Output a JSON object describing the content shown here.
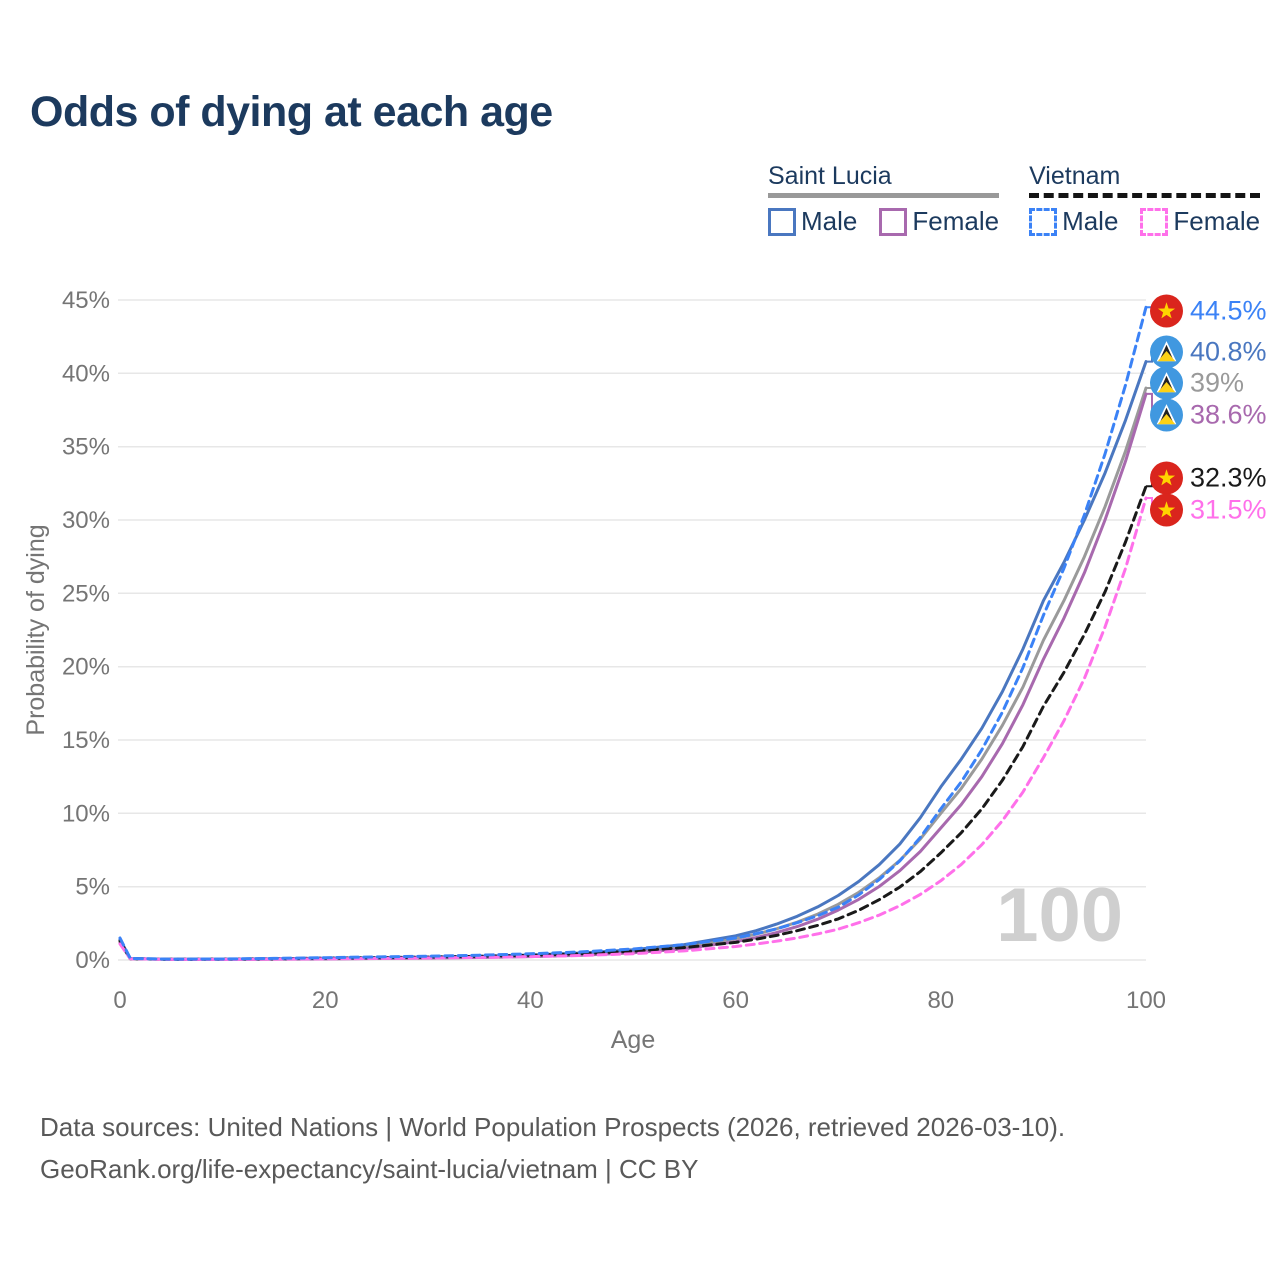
{
  "title": "Odds of dying at each age",
  "legend": {
    "groups": [
      {
        "name": "Saint Lucia",
        "line_style": "solid",
        "underline_color": "#999999",
        "items": [
          {
            "label": "Male",
            "color": "#4a77c0"
          },
          {
            "label": "Female",
            "color": "#a869ae"
          }
        ]
      },
      {
        "name": "Vietnam",
        "line_style": "dashed",
        "underline_color": "#141414",
        "items": [
          {
            "label": "Male",
            "color": "#3b82f6"
          },
          {
            "label": "Female",
            "color": "#ff70ea"
          }
        ]
      }
    ]
  },
  "watermark": "100",
  "footer": {
    "line1": "Data sources: United Nations | World Population Prospects (2026, retrieved 2026-03-10).",
    "line2": "GeoRank.org/life-expectancy/saint-lucia/vietnam | CC BY"
  },
  "chart_data": {
    "type": "line",
    "title": "Odds of dying at each age",
    "xlabel": "Age",
    "ylabel": "Probability of dying",
    "xlim": [
      0,
      100
    ],
    "ylim": [
      0,
      45
    ],
    "grid": "horizontal",
    "legend_position": "top-right",
    "x_ticks": [
      0,
      20,
      40,
      60,
      80,
      100
    ],
    "x_tick_labels": [
      "0",
      "20",
      "40",
      "60",
      "80",
      "100"
    ],
    "y_ticks": [
      0,
      5,
      10,
      15,
      20,
      25,
      30,
      35,
      40,
      45
    ],
    "y_tick_labels": [
      "0%",
      "5%",
      "10%",
      "15%",
      "20%",
      "25%",
      "30%",
      "35%",
      "40%",
      "45%"
    ],
    "ages": [
      0,
      1,
      5,
      10,
      15,
      20,
      25,
      30,
      35,
      40,
      45,
      50,
      55,
      60,
      62,
      64,
      66,
      68,
      70,
      72,
      74,
      76,
      78,
      80,
      82,
      84,
      86,
      88,
      90,
      92,
      94,
      96,
      98,
      100
    ],
    "series": [
      {
        "name": "Saint Lucia Total",
        "country": "Saint Lucia",
        "flag": "saint-lucia",
        "color": "#9a9a9a",
        "label_color": "#9a9a9a",
        "dashed": false,
        "end_label": "39%",
        "end_value": 39.0,
        "values": [
          1.25,
          0.09,
          0.045,
          0.05,
          0.07,
          0.1,
          0.13,
          0.16,
          0.21,
          0.28,
          0.4,
          0.59,
          0.9,
          1.45,
          1.76,
          2.13,
          2.58,
          3.13,
          3.8,
          4.61,
          5.6,
          6.79,
          8.24,
          10.0,
          11.7,
          13.7,
          16.0,
          18.6,
          21.8,
          24.5,
          27.5,
          30.9,
          34.7,
          39.0
        ]
      },
      {
        "name": "Saint Lucia Female",
        "country": "Saint Lucia",
        "flag": "saint-lucia",
        "color": "#a869ae",
        "label_color": "#a869ae",
        "dashed": false,
        "end_label": "38.6%",
        "end_value": 38.6,
        "values": [
          1.15,
          0.08,
          0.04,
          0.04,
          0.05,
          0.07,
          0.1,
          0.13,
          0.17,
          0.23,
          0.33,
          0.49,
          0.76,
          1.25,
          1.53,
          1.87,
          2.28,
          2.78,
          3.4,
          4.13,
          5.01,
          6.09,
          7.4,
          9.0,
          10.6,
          12.5,
          14.75,
          17.4,
          20.5,
          23.3,
          26.4,
          30.0,
          34.0,
          38.6
        ]
      },
      {
        "name": "Saint Lucia Male",
        "country": "Saint Lucia",
        "flag": "saint-lucia",
        "color": "#4a77c0",
        "label_color": "#4a77c0",
        "dashed": false,
        "end_label": "40.8%",
        "end_value": 40.8,
        "values": [
          1.4,
          0.1,
          0.05,
          0.06,
          0.09,
          0.13,
          0.16,
          0.2,
          0.26,
          0.34,
          0.48,
          0.7,
          1.05,
          1.65,
          2.0,
          2.45,
          2.98,
          3.62,
          4.4,
          5.35,
          6.5,
          7.9,
          9.7,
          11.8,
          13.7,
          15.8,
          18.3,
          21.2,
          24.5,
          27.1,
          30.0,
          33.2,
          36.8,
          40.8
        ]
      },
      {
        "name": "Vietnam Total",
        "country": "Vietnam",
        "flag": "vietnam",
        "color": "#1a1a1a",
        "label_color": "#1a1a1a",
        "dashed": true,
        "end_label": "32.3%",
        "end_value": 32.3,
        "values": [
          1.3,
          0.09,
          0.05,
          0.06,
          0.08,
          0.12,
          0.16,
          0.2,
          0.25,
          0.32,
          0.43,
          0.6,
          0.85,
          1.2,
          1.42,
          1.68,
          2.0,
          2.36,
          2.8,
          3.39,
          4.11,
          4.97,
          6.03,
          7.3,
          8.68,
          10.3,
          12.25,
          14.55,
          17.3,
          19.6,
          22.2,
          25.1,
          28.5,
          32.3
        ]
      },
      {
        "name": "Vietnam Female",
        "country": "Vietnam",
        "flag": "vietnam",
        "color": "#ff70ea",
        "label_color": "#ff70ea",
        "dashed": true,
        "end_label": "31.5%",
        "end_value": 31.5,
        "values": [
          1.1,
          0.08,
          0.04,
          0.04,
          0.06,
          0.08,
          0.11,
          0.14,
          0.18,
          0.23,
          0.31,
          0.43,
          0.62,
          0.92,
          1.09,
          1.28,
          1.51,
          1.78,
          2.1,
          2.54,
          3.06,
          3.7,
          4.47,
          5.4,
          6.52,
          7.86,
          9.5,
          11.45,
          13.8,
          16.3,
          19.2,
          22.7,
          26.7,
          31.5
        ]
      },
      {
        "name": "Vietnam Male",
        "country": "Vietnam",
        "flag": "vietnam",
        "color": "#3b82f6",
        "label_color": "#3b82f6",
        "dashed": true,
        "end_label": "44.5%",
        "end_value": 44.5,
        "values": [
          1.5,
          0.1,
          0.06,
          0.07,
          0.11,
          0.16,
          0.21,
          0.26,
          0.33,
          0.42,
          0.55,
          0.75,
          1.05,
          1.5,
          1.79,
          2.13,
          2.54,
          3.02,
          3.6,
          4.44,
          5.48,
          6.76,
          8.35,
          10.3,
          12.15,
          14.33,
          16.9,
          19.93,
          23.5,
          26.7,
          30.35,
          34.5,
          39.2,
          44.5
        ]
      }
    ]
  }
}
